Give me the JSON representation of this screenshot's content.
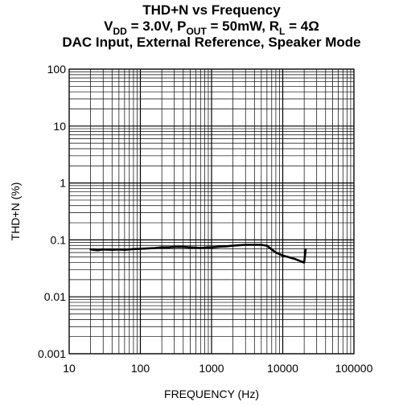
{
  "chart_data": {
    "type": "line",
    "title_lines": [
      {
        "parts": [
          {
            "text": "THD+N vs Frequency"
          }
        ]
      },
      {
        "parts": [
          {
            "text": "V"
          },
          {
            "text": "DD",
            "sub": true
          },
          {
            "text": " = 3.0V, P"
          },
          {
            "text": "OUT",
            "sub": true
          },
          {
            "text": " = 50mW, R"
          },
          {
            "text": "L",
            "sub": true
          },
          {
            "text": " = 4Ω"
          }
        ]
      },
      {
        "parts": [
          {
            "text": "DAC Input, External Reference, Speaker Mode"
          }
        ]
      }
    ],
    "xlabel": "FREQUENCY (Hz)",
    "ylabel": "THD+N (%)",
    "xscale": "log",
    "yscale": "log",
    "xlim": [
      10,
      100000
    ],
    "ylim": [
      0.001,
      100
    ],
    "xticks": [
      10,
      100,
      1000,
      10000,
      100000
    ],
    "xtick_labels": [
      "10",
      "100",
      "1000",
      "10000",
      "100000"
    ],
    "yticks": [
      0.001,
      0.01,
      0.1,
      1,
      10,
      100
    ],
    "ytick_labels": [
      "0.001",
      "0.01",
      "0.1",
      "1",
      "10",
      "100"
    ],
    "grid": true,
    "series": [
      {
        "color": "#000000",
        "x": [
          20,
          25,
          30,
          40,
          50,
          60,
          80,
          100,
          130,
          160,
          200,
          250,
          300,
          400,
          500,
          600,
          700,
          800,
          900,
          1000,
          1300,
          1600,
          2000,
          2500,
          3000,
          4000,
          5000,
          6000,
          7000,
          8000,
          10000,
          12000,
          15000,
          18000,
          20000,
          21000
        ],
        "y": [
          0.068,
          0.066,
          0.068,
          0.067,
          0.068,
          0.067,
          0.069,
          0.07,
          0.071,
          0.072,
          0.074,
          0.074,
          0.075,
          0.075,
          0.074,
          0.073,
          0.072,
          0.073,
          0.074,
          0.074,
          0.076,
          0.077,
          0.079,
          0.081,
          0.082,
          0.082,
          0.082,
          0.079,
          0.068,
          0.06,
          0.053,
          0.05,
          0.046,
          0.042,
          0.04,
          0.068
        ]
      }
    ]
  }
}
